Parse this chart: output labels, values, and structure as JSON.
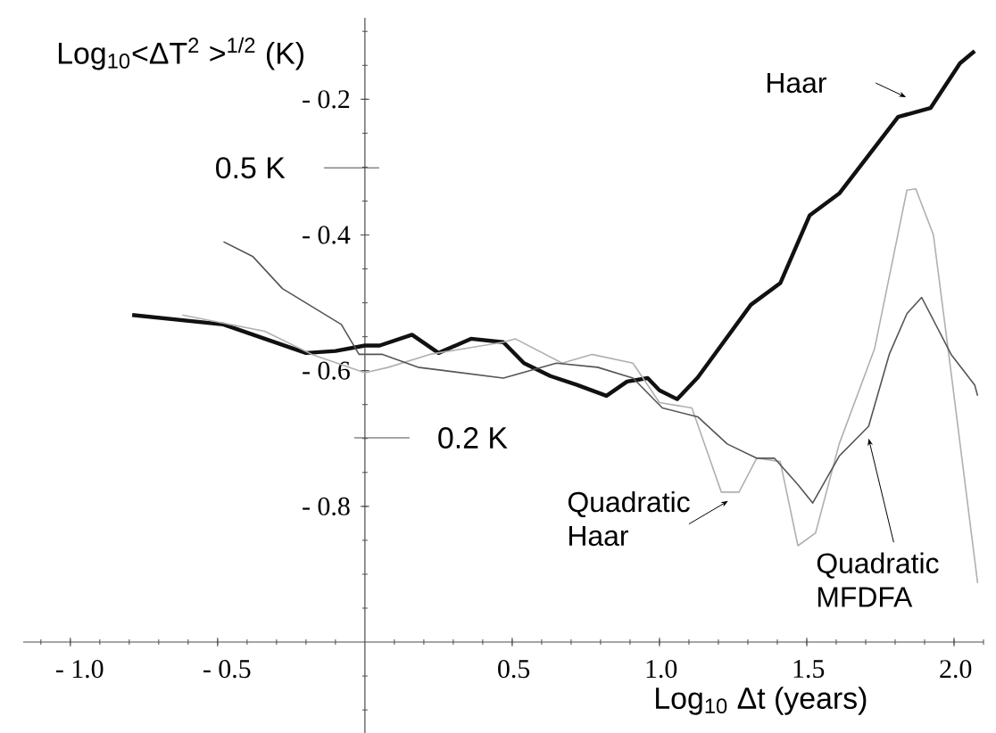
{
  "chart_data": {
    "type": "line",
    "xlabel": "Log$_{10}$ Δt (years)",
    "ylabel": "Log$_{10}$<ΔT$^{2}$ >$^{1/2}$ (K)",
    "xlim": [
      -1.16,
      2.1
    ],
    "ylim": [
      -1.134,
      -0.08
    ],
    "xticks": [
      {
        "value": -1.0,
        "label": "- 1.0"
      },
      {
        "value": -0.5,
        "label": "- 0.5"
      },
      0.5,
      {
        "value": 1.0,
        "label": "1.0"
      },
      1.5,
      {
        "value": 2.0,
        "label": "2.0"
      }
    ],
    "yticks": [
      {
        "value": -0.2,
        "label": "- 0.2"
      },
      {
        "value": -0.4,
        "label": "- 0.4"
      },
      {
        "value": -0.6,
        "label": "- 0.6"
      },
      {
        "value": -0.8,
        "label": "- 0.8"
      }
    ],
    "series": [
      {
        "name": "Haar",
        "color": "#111111",
        "x": [
          -0.79,
          -0.48,
          -0.2,
          -0.1,
          0,
          0.05,
          0.16,
          0.25,
          0.36,
          0.47,
          0.54,
          0.63,
          0.72,
          0.82,
          0.89,
          0.96,
          1.0,
          1.06,
          1.13,
          1.31,
          1.41,
          1.51,
          1.61,
          1.81,
          1.92,
          2.02,
          2.07
        ],
        "values": [
          -0.518,
          -0.532,
          -0.574,
          -0.571,
          -0.563,
          -0.563,
          -0.547,
          -0.574,
          -0.553,
          -0.558,
          -0.589,
          -0.608,
          -0.621,
          -0.637,
          -0.616,
          -0.611,
          -0.629,
          -0.642,
          -0.61,
          -0.503,
          -0.471,
          -0.371,
          -0.339,
          -0.226,
          -0.213,
          -0.147,
          -0.129
        ]
      },
      {
        "name": "Quadratic Haar",
        "color": "#b0b0b0",
        "x": [
          -0.62,
          -0.34,
          -0.18,
          0,
          0.08,
          0.22,
          0.47,
          0.51,
          0.67,
          0.77,
          0.91,
          1.0,
          1.11,
          1.21,
          1.27,
          1.33,
          1.41,
          1.47,
          1.53,
          1.61,
          1.73,
          1.84,
          1.87,
          1.93,
          1.99,
          2.08
        ],
        "values": [
          -0.518,
          -0.542,
          -0.576,
          -0.603,
          -0.595,
          -0.576,
          -0.558,
          -0.553,
          -0.589,
          -0.576,
          -0.589,
          -0.647,
          -0.655,
          -0.779,
          -0.779,
          -0.729,
          -0.734,
          -0.858,
          -0.839,
          -0.708,
          -0.568,
          -0.334,
          -0.332,
          -0.4,
          -0.603,
          -0.913
        ]
      },
      {
        "name": "Quadratic MFDFA",
        "color": "#555555",
        "x": [
          -0.48,
          -0.38,
          -0.28,
          -0.08,
          -0.02,
          0.06,
          0.18,
          0.47,
          0.65,
          0.79,
          0.91,
          1.01,
          1.13,
          1.23,
          1.33,
          1.39,
          1.47,
          1.52,
          1.61,
          1.71,
          1.78,
          1.84,
          1.89,
          1.99,
          2.07,
          2.08
        ],
        "values": [
          -0.41,
          -0.432,
          -0.479,
          -0.532,
          -0.576,
          -0.576,
          -0.595,
          -0.611,
          -0.589,
          -0.595,
          -0.611,
          -0.655,
          -0.668,
          -0.708,
          -0.729,
          -0.729,
          -0.768,
          -0.795,
          -0.726,
          -0.682,
          -0.576,
          -0.516,
          -0.492,
          -0.576,
          -0.621,
          -0.637
        ]
      }
    ],
    "annotations": [
      "0.5 K",
      "0.2 K"
    ]
  }
}
